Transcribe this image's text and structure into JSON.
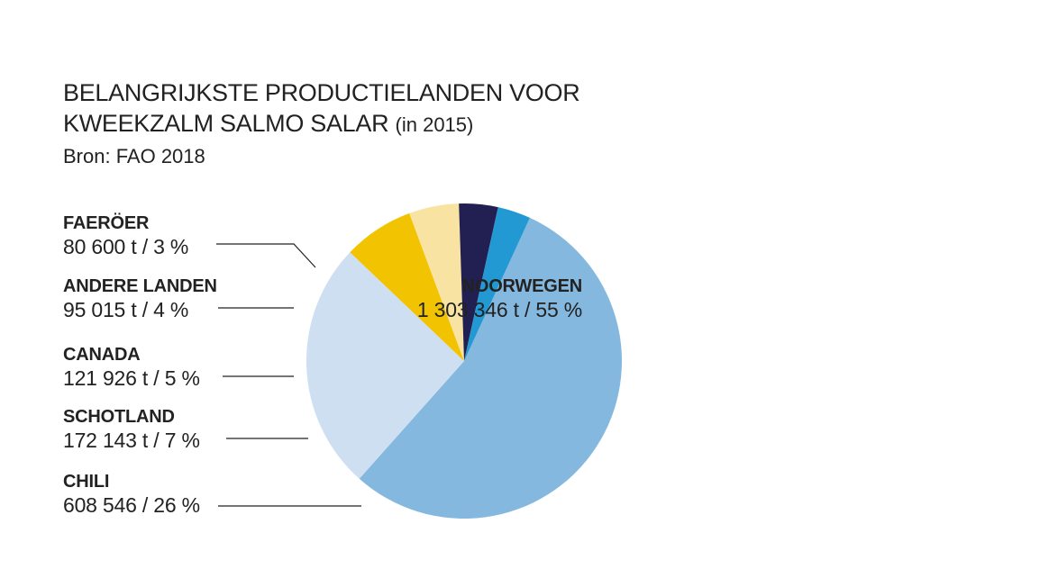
{
  "title": {
    "line1": "BELANGRIJKSTE PRODUCTIELANDEN VOOR",
    "line2_main": "KWEEKZALM SALMO SALAR",
    "line2_suffix": "(in 2015)",
    "source": "Bron: FAO 2018"
  },
  "chart_data": {
    "type": "pie",
    "title": "BELANGRIJKSTE PRODUCTIELANDEN VOOR KWEEKZALM SALMO SALAR (in 2015)",
    "start_angle_deg": 0,
    "direction": "clockwise",
    "slices": [
      {
        "key": "noorwegen",
        "name": "NOORWEGEN",
        "value": 1303346,
        "percent": 55,
        "value_label": "1 303 346 t / 55 %",
        "color": "#84b8de"
      },
      {
        "key": "chili",
        "name": "CHILI",
        "value": 608546,
        "percent": 26,
        "value_label": "608 546 / 26 %",
        "color": "#cfdff2"
      },
      {
        "key": "schotland",
        "name": "SCHOTLAND",
        "value": 172143,
        "percent": 7,
        "value_label": "172 143 t / 7 %",
        "color": "#f2c300"
      },
      {
        "key": "canada",
        "name": "CANADA",
        "value": 121926,
        "percent": 5,
        "value_label": "121 926 t / 5 %",
        "color": "#f8e3a3"
      },
      {
        "key": "andere",
        "name": "ANDERE LANDEN",
        "value": 95015,
        "percent": 4,
        "value_label": "95 015 t / 4 %",
        "color": "#221f52"
      },
      {
        "key": "faeroer",
        "name": "FAERÖER",
        "value": 80600,
        "percent": 3,
        "value_label": "80 600 t / 3 %",
        "color": "#2399d3"
      }
    ]
  },
  "colors": {
    "text": "#222222",
    "leader_line": "#222222"
  }
}
